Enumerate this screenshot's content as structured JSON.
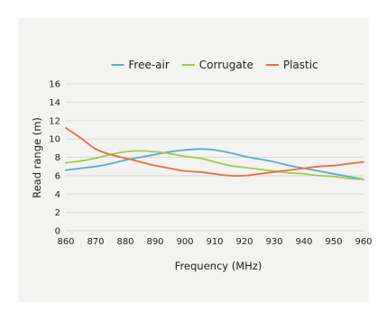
{
  "colors": {
    "background": "#f3f3f1",
    "grid": "#d9d9d6",
    "free_air": "#5aaad6",
    "corrugate": "#9ecb4c",
    "plastic": "#e4703f"
  },
  "chart_data": {
    "type": "line",
    "xlabel": "Frequency (MHz)",
    "ylabel": "Read range (m)",
    "xlim": [
      860,
      960
    ],
    "ylim": [
      0,
      16
    ],
    "xticks": [
      860,
      870,
      880,
      890,
      900,
      910,
      920,
      930,
      940,
      950,
      960
    ],
    "yticks": [
      0,
      2,
      4,
      6,
      8,
      10,
      12,
      14,
      16
    ],
    "grid": true,
    "legend_position": "top-center",
    "series": [
      {
        "name": "Free-air",
        "color": "#5aaad6",
        "x": [
          860,
          865,
          870,
          875,
          880,
          885,
          890,
          895,
          900,
          905,
          910,
          915,
          920,
          925,
          930,
          935,
          940,
          945,
          950,
          955,
          960
        ],
        "y": [
          6.6,
          6.8,
          7.0,
          7.3,
          7.7,
          8.0,
          8.3,
          8.6,
          8.8,
          8.9,
          8.8,
          8.5,
          8.1,
          7.8,
          7.5,
          7.1,
          6.8,
          6.5,
          6.2,
          5.9,
          5.6
        ]
      },
      {
        "name": "Corrugate",
        "color": "#9ecb4c",
        "x": [
          860,
          865,
          870,
          875,
          880,
          885,
          890,
          895,
          900,
          905,
          910,
          915,
          920,
          925,
          930,
          935,
          940,
          945,
          950,
          955,
          960
        ],
        "y": [
          7.4,
          7.6,
          7.9,
          8.3,
          8.6,
          8.7,
          8.6,
          8.4,
          8.1,
          7.9,
          7.5,
          7.1,
          6.9,
          6.7,
          6.5,
          6.3,
          6.2,
          6.0,
          5.9,
          5.7,
          5.6
        ]
      },
      {
        "name": "Plastic",
        "color": "#e4703f",
        "x": [
          860,
          865,
          870,
          875,
          880,
          885,
          890,
          895,
          900,
          905,
          910,
          915,
          920,
          925,
          930,
          935,
          940,
          945,
          950,
          955,
          960
        ],
        "y": [
          11.2,
          10.1,
          8.9,
          8.3,
          7.9,
          7.5,
          7.1,
          6.8,
          6.5,
          6.4,
          6.2,
          6.0,
          6.0,
          6.2,
          6.4,
          6.6,
          6.8,
          7.0,
          7.1,
          7.3,
          7.5
        ]
      }
    ]
  }
}
